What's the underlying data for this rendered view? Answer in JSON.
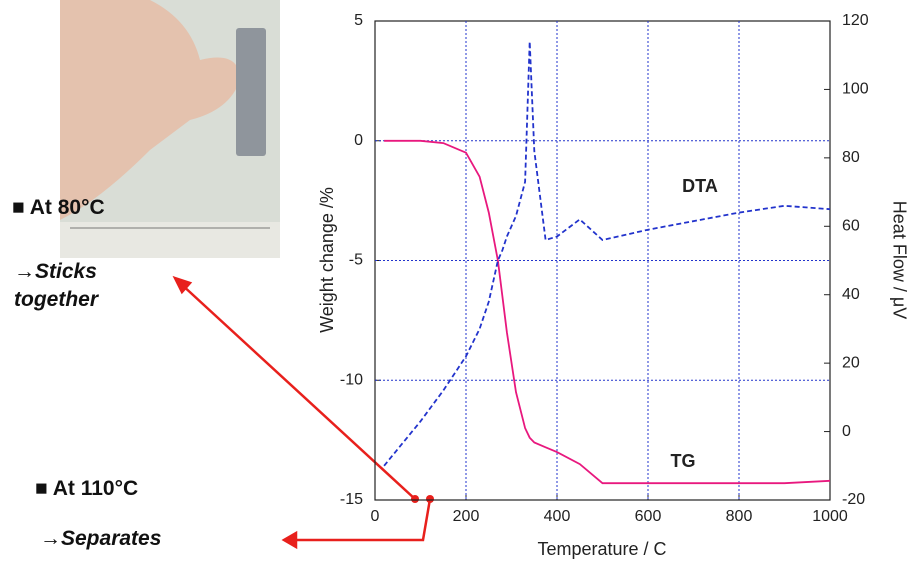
{
  "chart_data": {
    "type": "line",
    "x": [
      20,
      100,
      150,
      200,
      230,
      250,
      270,
      280,
      290,
      310,
      330,
      340,
      350,
      375,
      400,
      450,
      500,
      600,
      800,
      900,
      1000
    ],
    "xlim": [
      0,
      1000
    ],
    "xticks": [
      0,
      200,
      400,
      600,
      800,
      1000
    ],
    "ylim": [
      -15,
      5
    ],
    "yticks": [
      5,
      0,
      -5,
      -10,
      -15
    ],
    "y2lim": [
      -20,
      120
    ],
    "y2ticks": [
      120,
      100,
      80,
      60,
      40,
      20,
      0,
      -20
    ],
    "xlabel": "Temperature / C",
    "ylabel": "Weight change /%",
    "y2label": "Heat Flow / μV",
    "grid": true,
    "series": [
      {
        "name": "TG",
        "color": "#e8187e",
        "label_color": "#f07020",
        "values": [
          0,
          0,
          -0.1,
          -0.5,
          -1.5,
          -3,
          -5,
          -6.5,
          -8,
          -10.5,
          -12,
          -12.4,
          -12.6,
          -12.8,
          -13,
          -13.5,
          -14.3,
          -14.3,
          -14.3,
          -14.3,
          -14.2
        ]
      },
      {
        "name": "DTA",
        "color": "#2233cc",
        "label_color": "#3355dd",
        "axis": "y2",
        "dashed": true,
        "values": [
          -10,
          3,
          12,
          22,
          30,
          38,
          50,
          53,
          57,
          63,
          73,
          114,
          82,
          56,
          57,
          62,
          56,
          59,
          64,
          66,
          65
        ]
      }
    ]
  },
  "notes": [
    {
      "heading": "■ At 80°C",
      "result": "→Sticks together"
    },
    {
      "heading": "■ At 110°C",
      "result": "→Separates"
    }
  ]
}
